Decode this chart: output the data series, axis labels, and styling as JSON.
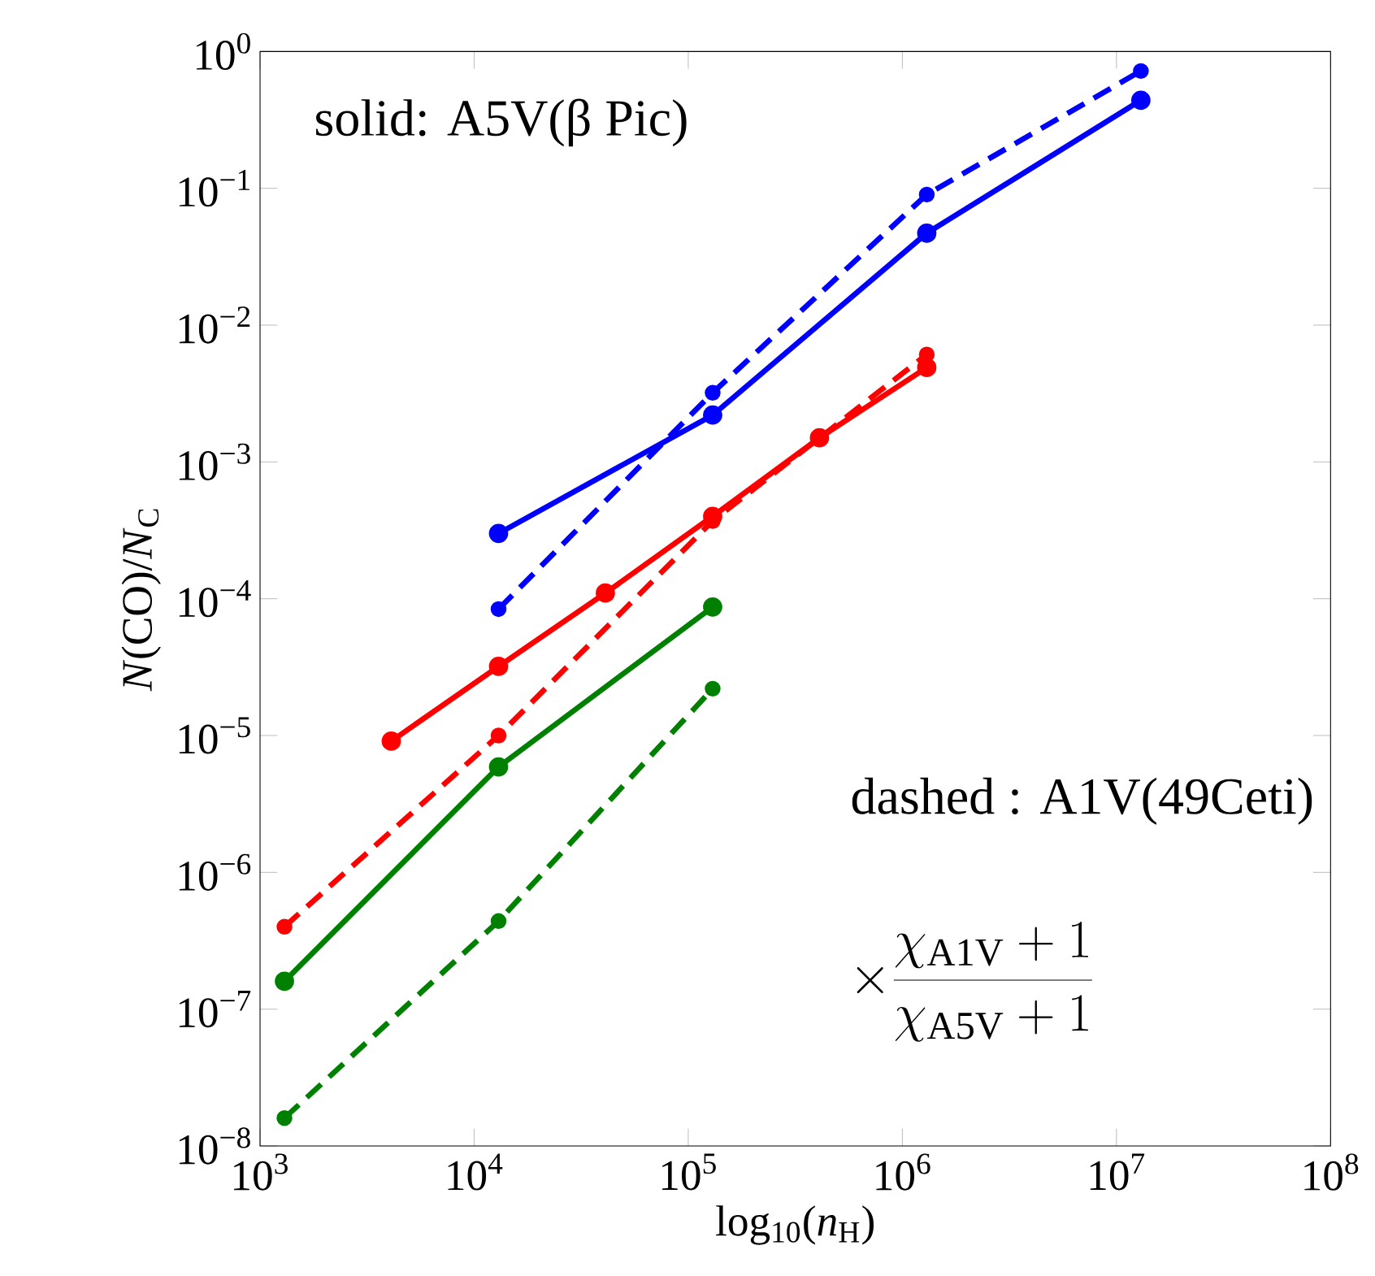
{
  "chart_data": {
    "type": "line",
    "xlabel": "log$_{10}$(*n*$_{H}$)",
    "ylabel": "*N*(CO)/*N*$_{C}$",
    "log": "xy",
    "grid": false,
    "marker": "circle",
    "xlim": [
      1000,
      100000000
    ],
    "ylim": [
      1e-08,
      1
    ],
    "xticks": [
      {
        "value": 1000,
        "label": "10$^{3}$"
      },
      {
        "value": 10000,
        "label": "10$^{4}$"
      },
      {
        "value": 100000,
        "label": "10$^{5}$"
      },
      {
        "value": 1000000,
        "label": "10$^{6}$"
      },
      {
        "value": 10000000,
        "label": "10$^{7}$"
      },
      {
        "value": 100000000,
        "label": "10$^{8}$"
      }
    ],
    "yticks": [
      {
        "value": 1e-08,
        "label": "10$^{−8}$"
      },
      {
        "value": 1e-07,
        "label": "10$^{−7}$"
      },
      {
        "value": 1e-06,
        "label": "10$^{−6}$"
      },
      {
        "value": 1e-05,
        "label": "10$^{−5}$"
      },
      {
        "value": 0.0001,
        "label": "10$^{−4}$"
      },
      {
        "value": 0.001,
        "label": "10$^{−3}$"
      },
      {
        "value": 0.01,
        "label": "10$^{−2}$"
      },
      {
        "value": 0.1,
        "label": "10$^{−1}$"
      },
      {
        "value": 1,
        "label": "10$^{0}$"
      }
    ],
    "series": [
      {
        "color": "#0000ff",
        "line_style": "solid",
        "x": [
          13000,
          130000,
          1300000,
          13000000
        ],
        "values": [
          0.0003,
          0.0022,
          0.047,
          0.44
        ]
      },
      {
        "color": "#0000ff",
        "line_style": "dashed",
        "x": [
          13000,
          130000,
          1300000,
          13000000
        ],
        "values": [
          8.4e-05,
          0.0032,
          0.09,
          0.72
        ]
      },
      {
        "color": "#ff0000",
        "line_style": "solid",
        "x": [
          4100,
          13000,
          41000,
          130000,
          410000,
          1300000
        ],
        "values": [
          9.1e-06,
          3.2e-05,
          0.00011,
          0.0004,
          0.0015,
          0.0049
        ]
      },
      {
        "color": "#ff0000",
        "line_style": "dashed",
        "x": [
          1300,
          13000,
          130000,
          1300000
        ],
        "values": [
          4e-07,
          1e-05,
          0.00037,
          0.0061
        ]
      },
      {
        "color": "#008000",
        "line_style": "solid",
        "x": [
          1300,
          13000,
          130000
        ],
        "values": [
          1.6e-07,
          5.9e-06,
          8.7e-05
        ]
      },
      {
        "color": "#008000",
        "line_style": "dashed",
        "x": [
          1300,
          13000,
          130000
        ],
        "values": [
          1.6e-08,
          4.4e-07,
          2.2e-05
        ]
      }
    ],
    "annotations": [
      "solid: A5V(β Pic)",
      "dashed : A1V(49Ceti)",
      "\\times\\frac{\\chi_{\\mathrm{A1V}}+1}{\\chi_{\\mathrm{A5V}}+1}"
    ]
  }
}
